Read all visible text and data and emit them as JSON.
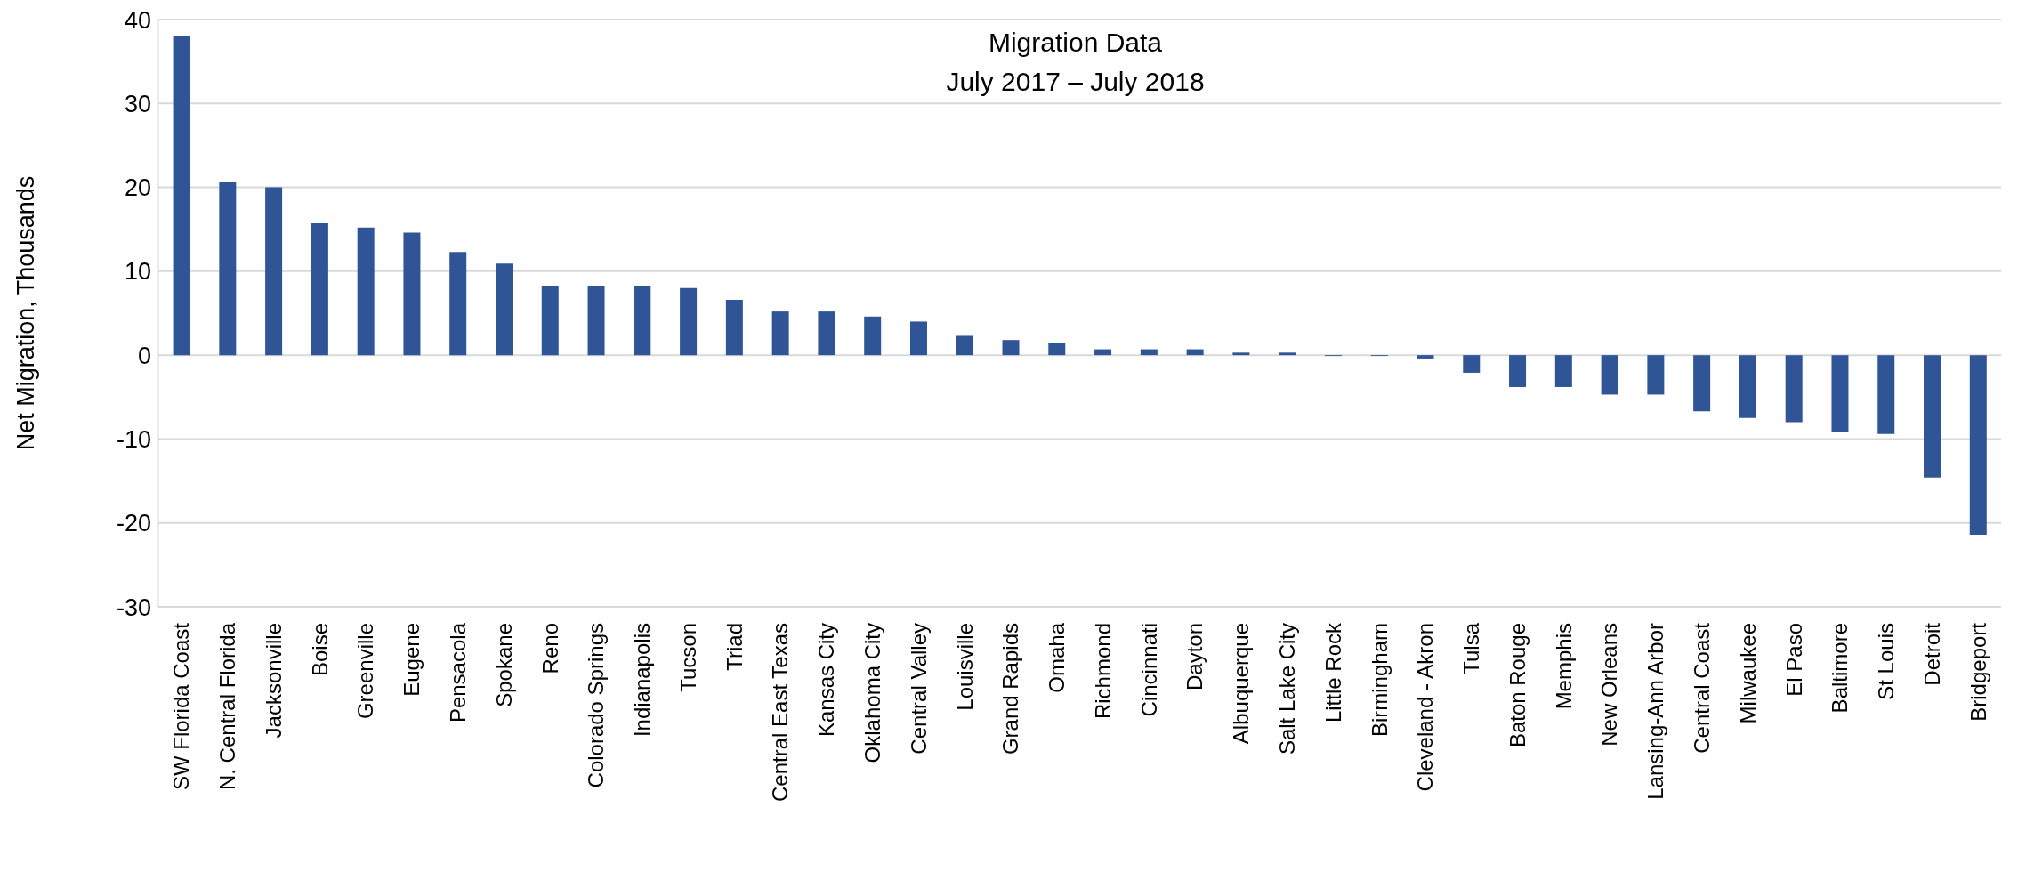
{
  "chart_data": {
    "type": "bar",
    "title": "Migration Data\nJuly 2017 – July 2018",
    "ylabel": "Net Migration, Thousands",
    "categories": [
      "SW Florida Coast",
      "N. Central Florida",
      "Jacksonville",
      "Boise",
      "Greenville",
      "Eugene",
      "Pensacola",
      "Spokane",
      "Reno",
      "Colorado Springs",
      "Indianapolis",
      "Tucson",
      "Triad",
      "Central East Texas",
      "Kansas City",
      "Oklahoma City",
      "Central Valley",
      "Louisville",
      "Grand Rapids",
      "Omaha",
      "Richmond",
      "Cincinnati",
      "Dayton",
      "Albuquerque",
      "Salt Lake City",
      "Little Rock",
      "Birmingham",
      "Cleveland - Akron",
      "Tulsa",
      "Baton Rouge",
      "Memphis",
      "New Orleans",
      "Lansing-Ann Arbor",
      "Central Coast",
      "Milwaukee",
      "El Paso",
      "Baltimore",
      "St Louis",
      "Detroit",
      "Bridgeport"
    ],
    "values": [
      38,
      20.6,
      20,
      15.7,
      15.2,
      14.6,
      12.3,
      10.9,
      8.3,
      8.3,
      8.3,
      8.0,
      6.6,
      5.2,
      5.2,
      4.6,
      4.0,
      2.3,
      1.8,
      1.5,
      0.7,
      0.7,
      0.7,
      0.3,
      0.3,
      -0.1,
      -0.1,
      -0.4,
      -2.1,
      -3.8,
      -3.8,
      -4.7,
      -4.7,
      -6.7,
      -7.5,
      -8.0,
      -9.2,
      -9.4,
      -14.6,
      -21.4
    ],
    "color": "#2f5597",
    "ylim": [
      -30,
      40
    ],
    "yticks": [
      -30,
      -20,
      -10,
      0,
      10,
      20,
      30,
      40
    ],
    "grid": "y",
    "legend": false
  }
}
